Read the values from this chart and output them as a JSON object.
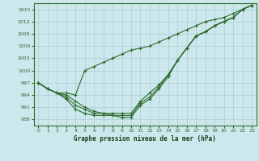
{
  "title": "Graphe pression niveau de la mer (hPa)",
  "background_color": "#cde8ec",
  "grid_color": "#aacdd4",
  "line_color": "#2d6a2d",
  "ylim": [
    986.5,
    1016.5
  ],
  "yticks": [
    988,
    991,
    994,
    997,
    1000,
    1003,
    1006,
    1009,
    1012,
    1015
  ],
  "xlim": [
    -0.5,
    23.5
  ],
  "xticks": [
    0,
    1,
    2,
    3,
    4,
    5,
    6,
    7,
    8,
    9,
    10,
    11,
    12,
    13,
    14,
    15,
    16,
    17,
    18,
    19,
    20,
    21,
    22,
    23
  ],
  "series": [
    [
      997,
      995.5,
      994.5,
      994.5,
      994.0,
      1000,
      1001,
      1002,
      1003,
      1004,
      1005,
      1005.5,
      1006,
      1007,
      1008,
      1009,
      1010,
      1011,
      1012,
      1012.5,
      1013,
      1014,
      1015,
      1016
    ],
    [
      997,
      995.5,
      994.5,
      994.0,
      992.5,
      991.0,
      990.0,
      989.5,
      989.5,
      989.5,
      989.5,
      992.5,
      994.5,
      996.5,
      999.0,
      1002.5,
      1005.5,
      1008.5,
      1009.5,
      1011,
      1012,
      1013,
      1015,
      1016
    ],
    [
      997,
      995.5,
      994.5,
      993.0,
      990.5,
      989.5,
      989.0,
      989.0,
      989.0,
      989.0,
      989.0,
      992.0,
      993.5,
      996.0,
      999.0,
      1002.5,
      1005.5,
      1008.5,
      1009.5,
      1011,
      1012,
      1013,
      1015,
      1016
    ],
    [
      997,
      995.5,
      994.5,
      993.5,
      991.5,
      990.5,
      989.5,
      989.5,
      989.0,
      988.5,
      988.5,
      991.5,
      993.0,
      995.5,
      998.5,
      1002.5,
      1005.5,
      1008.5,
      1009.5,
      1011,
      1012,
      1013,
      1015,
      1016
    ]
  ]
}
